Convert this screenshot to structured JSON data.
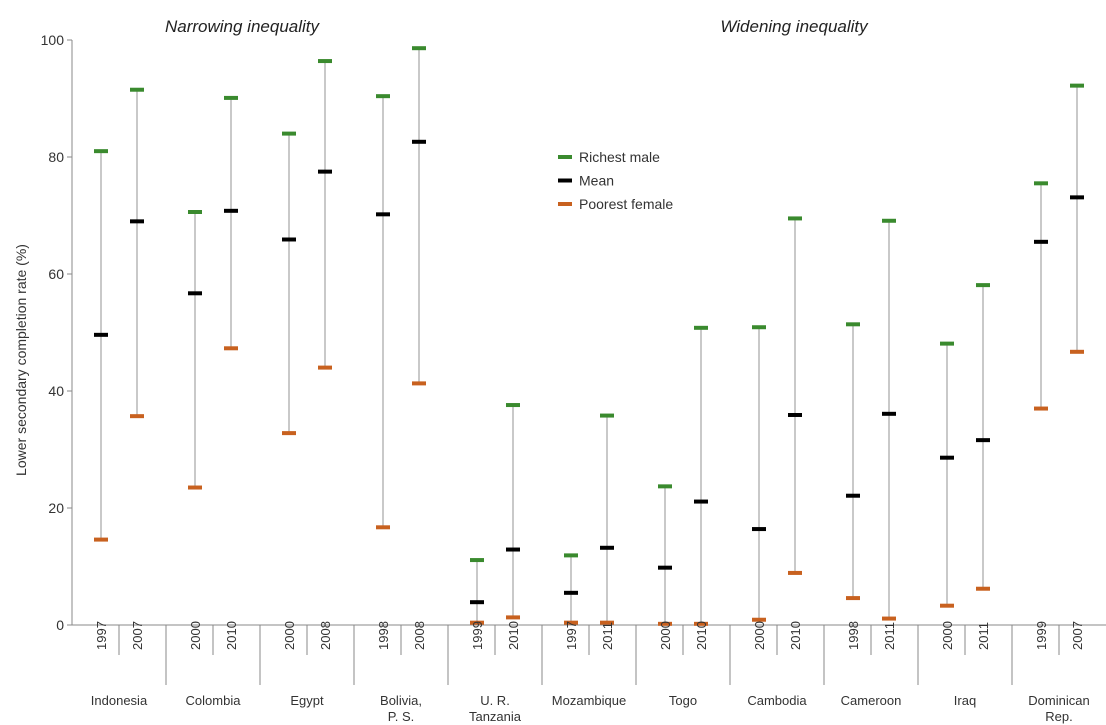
{
  "colors": {
    "richest": "#3a8a2e",
    "mean": "#000000",
    "poorest": "#c8611f",
    "range": "#c9c9c9",
    "axis": "#888888"
  },
  "chart_data": {
    "type": "range-dot",
    "ylabel": "Lower secondary completion rate (%)",
    "ylim": [
      0,
      100
    ],
    "yticks": [
      0,
      20,
      40,
      60,
      80,
      100
    ],
    "grid": false,
    "legend_position": "top-center",
    "sections": [
      {
        "title": "Narrowing inequality",
        "countries": [
          "Indonesia",
          "Colombia",
          "Egypt",
          "Bolivia, P. S."
        ]
      },
      {
        "title": "Widening inequality",
        "countries": [
          "U. R. Tanzania",
          "Mozambique",
          "Togo",
          "Cambodia",
          "Cameroon",
          "Iraq",
          "Dominican Rep."
        ]
      }
    ],
    "series": [
      {
        "name": "Richest male",
        "key": "richest"
      },
      {
        "name": "Mean",
        "key": "mean"
      },
      {
        "name": "Poorest female",
        "key": "poorest"
      }
    ],
    "groups": [
      {
        "country": [
          "Indonesia"
        ],
        "points": [
          {
            "year": "1997",
            "richest": 81,
            "mean": 49.6,
            "poorest": 14.6
          },
          {
            "year": "2007",
            "richest": 91.5,
            "mean": 69,
            "poorest": 35.7
          }
        ]
      },
      {
        "country": [
          "Colombia"
        ],
        "points": [
          {
            "year": "2000",
            "richest": 70.6,
            "mean": 56.7,
            "poorest": 23.5
          },
          {
            "year": "2010",
            "richest": 90.1,
            "mean": 70.8,
            "poorest": 47.3
          }
        ]
      },
      {
        "country": [
          "Egypt"
        ],
        "points": [
          {
            "year": "2000",
            "richest": 84,
            "mean": 65.9,
            "poorest": 32.8
          },
          {
            "year": "2008",
            "richest": 96.4,
            "mean": 77.5,
            "poorest": 44
          }
        ]
      },
      {
        "country": [
          "Bolivia,",
          "P. S."
        ],
        "points": [
          {
            "year": "1998",
            "richest": 90.4,
            "mean": 70.2,
            "poorest": 16.7
          },
          {
            "year": "2008",
            "richest": 98.6,
            "mean": 82.6,
            "poorest": 41.3
          }
        ]
      },
      {
        "country": [
          "U. R.",
          "Tanzania"
        ],
        "points": [
          {
            "year": "1999",
            "richest": 11.1,
            "mean": 3.9,
            "poorest": 0.4
          },
          {
            "year": "2010",
            "richest": 37.6,
            "mean": 12.9,
            "poorest": 1.3
          }
        ]
      },
      {
        "country": [
          "Mozambique"
        ],
        "points": [
          {
            "year": "1997",
            "richest": 11.9,
            "mean": 5.5,
            "poorest": 0.4
          },
          {
            "year": "2011",
            "richest": 35.8,
            "mean": 13.2,
            "poorest": 0.4
          }
        ]
      },
      {
        "country": [
          "Togo"
        ],
        "points": [
          {
            "year": "2000",
            "richest": 23.7,
            "mean": 9.8,
            "poorest": 0.2
          },
          {
            "year": "2010",
            "richest": 50.8,
            "mean": 21.1,
            "poorest": 0.2
          }
        ]
      },
      {
        "country": [
          "Cambodia"
        ],
        "points": [
          {
            "year": "2000",
            "richest": 50.9,
            "mean": 16.4,
            "poorest": 0.9
          },
          {
            "year": "2010",
            "richest": 69.5,
            "mean": 35.9,
            "poorest": 8.9
          }
        ]
      },
      {
        "country": [
          "Cameroon"
        ],
        "points": [
          {
            "year": "1998",
            "richest": 51.4,
            "mean": 22.1,
            "poorest": 4.6
          },
          {
            "year": "2011",
            "richest": 69.1,
            "mean": 36.1,
            "poorest": 1.1
          }
        ]
      },
      {
        "country": [
          "Iraq"
        ],
        "points": [
          {
            "year": "2000",
            "richest": 48.1,
            "mean": 28.6,
            "poorest": 3.3
          },
          {
            "year": "2011",
            "richest": 58.1,
            "mean": 31.6,
            "poorest": 6.2
          }
        ]
      },
      {
        "country": [
          "Dominican",
          "Rep."
        ],
        "points": [
          {
            "year": "1999",
            "richest": 75.5,
            "mean": 65.5,
            "poorest": 37
          },
          {
            "year": "2007",
            "richest": 92.2,
            "mean": 73.1,
            "poorest": 46.7
          }
        ]
      }
    ]
  }
}
